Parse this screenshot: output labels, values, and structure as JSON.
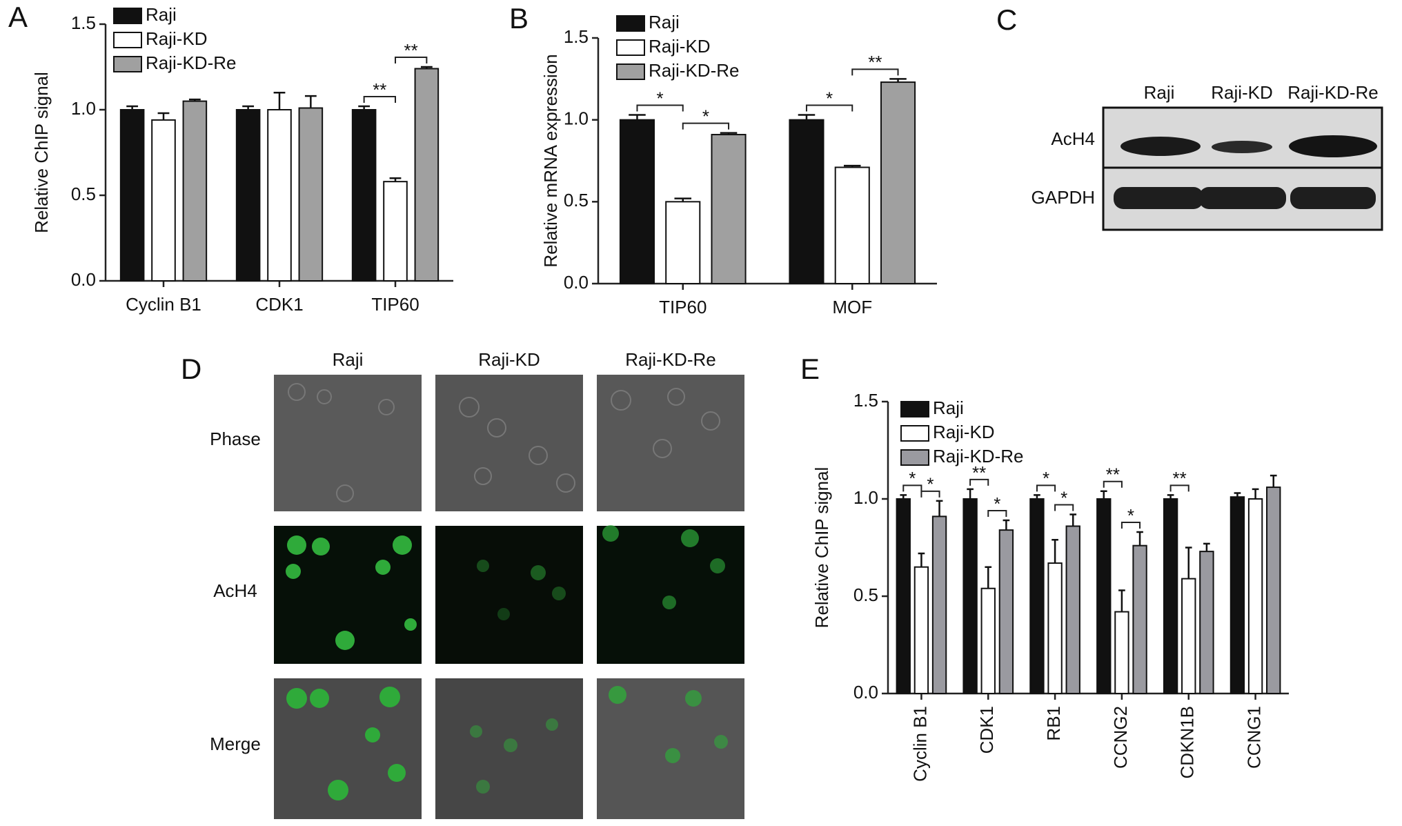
{
  "chart_data": [
    {
      "type": "bar",
      "panel": "A",
      "y_label": "Relative ChIP signal",
      "categories": [
        "Cyclin B1",
        "CDK1",
        "TIP60"
      ],
      "series": [
        {
          "name": "Raji",
          "color": "#111111",
          "values": [
            1.0,
            1.0,
            1.0
          ],
          "errors": [
            0.02,
            0.02,
            0.02
          ]
        },
        {
          "name": "Raji-KD",
          "color": "#ffffff",
          "values": [
            0.94,
            1.0,
            0.58
          ],
          "errors": [
            0.04,
            0.1,
            0.02
          ]
        },
        {
          "name": "Raji-KD-Re",
          "color": "#a0a0a0",
          "values": [
            1.05,
            1.01,
            1.24
          ],
          "errors": [
            0.01,
            0.07,
            0.01
          ]
        }
      ],
      "ylim": [
        0,
        1.5
      ],
      "yticks": [
        {
          "value": 0,
          "label": "0.0"
        },
        {
          "value": 0.5,
          "label": "0.5"
        },
        {
          "value": 1,
          "label": "1.0"
        },
        {
          "value": 1.5,
          "label": "1.5"
        }
      ],
      "legend": "top-left",
      "brackets": [
        {
          "text": "**",
          "category": "TIP60",
          "from": "Raji",
          "to": "Raji-KD"
        },
        {
          "text": "**",
          "category": "TIP60",
          "from": "Raji-KD",
          "to": "Raji-KD-Re"
        }
      ]
    },
    {
      "type": "bar",
      "panel": "B",
      "y_label": "Relative mRNA expression",
      "categories": [
        "TIP60",
        "MOF"
      ],
      "series": [
        {
          "name": "Raji",
          "color": "#111111",
          "values": [
            1.0,
            1.0
          ],
          "errors": [
            0.03,
            0.03
          ]
        },
        {
          "name": "Raji-KD",
          "color": "#ffffff",
          "values": [
            0.5,
            0.71
          ],
          "errors": [
            0.02,
            0.01
          ]
        },
        {
          "name": "Raji-KD-Re",
          "color": "#a0a0a0",
          "values": [
            0.91,
            1.23
          ],
          "errors": [
            0.01,
            0.02
          ]
        }
      ],
      "ylim": [
        0,
        1.5
      ],
      "yticks": [
        {
          "value": 0,
          "label": "0.0"
        },
        {
          "value": 0.5,
          "label": "0.5"
        },
        {
          "value": 1,
          "label": "1.0"
        },
        {
          "value": 1.5,
          "label": "1.5"
        }
      ],
      "legend": "top-left",
      "brackets": [
        {
          "text": "*",
          "category": "TIP60",
          "from": "Raji",
          "to": "Raji-KD"
        },
        {
          "text": "*",
          "category": "TIP60",
          "from": "Raji-KD",
          "to": "Raji-KD-Re"
        },
        {
          "text": "*",
          "category": "MOF",
          "from": "Raji",
          "to": "Raji-KD"
        },
        {
          "text": "**",
          "category": "MOF",
          "from": "Raji-KD",
          "to": "Raji-KD-Re"
        }
      ]
    },
    {
      "type": "bar",
      "panel": "E",
      "y_label": "Relative ChIP signal",
      "rotate_categories": true,
      "categories": [
        "Cyclin B1",
        "CDK1",
        "RB1",
        "CCNG2",
        "CDKN1B",
        "CCNG1"
      ],
      "series": [
        {
          "name": "Raji",
          "color": "#111111",
          "values": [
            1.0,
            1.0,
            1.0,
            1.0,
            1.0,
            1.01
          ],
          "errors": [
            0.02,
            0.05,
            0.02,
            0.04,
            0.02,
            0.02
          ]
        },
        {
          "name": "Raji-KD",
          "color": "#ffffff",
          "values": [
            0.65,
            0.54,
            0.67,
            0.42,
            0.59,
            1.0
          ],
          "errors": [
            0.07,
            0.11,
            0.12,
            0.11,
            0.16,
            0.05
          ]
        },
        {
          "name": "Raji-KD-Re",
          "color": "#9a9aa0",
          "values": [
            0.91,
            0.84,
            0.86,
            0.76,
            0.73,
            1.06
          ],
          "errors": [
            0.08,
            0.05,
            0.06,
            0.07,
            0.04,
            0.06
          ]
        }
      ],
      "ylim": [
        0,
        1.5
      ],
      "yticks": [
        {
          "value": 0,
          "label": "0.0"
        },
        {
          "value": 0.5,
          "label": "0.5"
        },
        {
          "value": 1,
          "label": "1.0"
        },
        {
          "value": 1.5,
          "label": "1.5"
        }
      ],
      "legend": "top-left",
      "brackets": [
        {
          "text": "*",
          "category": "Cyclin B1",
          "from": "Raji",
          "to": "Raji-KD"
        },
        {
          "text": "*",
          "category": "Cyclin B1",
          "from": "Raji-KD",
          "to": "Raji-KD-Re"
        },
        {
          "text": "**",
          "category": "CDK1",
          "from": "Raji",
          "to": "Raji-KD"
        },
        {
          "text": "*",
          "category": "CDK1",
          "from": "Raji-KD",
          "to": "Raji-KD-Re"
        },
        {
          "text": "*",
          "category": "RB1",
          "from": "Raji",
          "to": "Raji-KD"
        },
        {
          "text": "*",
          "category": "RB1",
          "from": "Raji-KD",
          "to": "Raji-KD-Re"
        },
        {
          "text": "**",
          "category": "CCNG2",
          "from": "Raji",
          "to": "Raji-KD"
        },
        {
          "text": "*",
          "category": "CCNG2",
          "from": "Raji-KD",
          "to": "Raji-KD-Re"
        },
        {
          "text": "**",
          "category": "CDKN1B",
          "from": "Raji",
          "to": "Raji-KD"
        }
      ]
    }
  ],
  "blot": {
    "panel": "C",
    "columns": [
      "Raji",
      "Raji-KD",
      "Raji-KD-Re"
    ],
    "rows": [
      "AcH4",
      "GAPDH"
    ]
  },
  "microscopy": {
    "panel": "D",
    "columns": [
      "Raji",
      "Raji-KD",
      "Raji-KD-Re"
    ],
    "rows": [
      "Phase",
      "AcH4",
      "Merge"
    ]
  }
}
